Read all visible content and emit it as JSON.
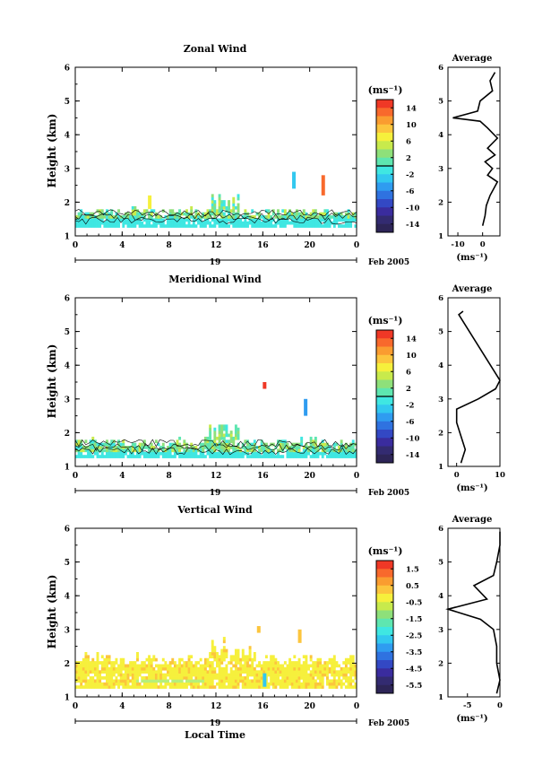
{
  "chart_data": [
    {
      "type": "heatmap",
      "title": "Zonal Wind",
      "ylabel": "Height (km)",
      "x_ticks": [
        "0",
        "4",
        "8",
        "12",
        "16",
        "20",
        "0"
      ],
      "day_label": "19",
      "month_label": "Feb 2005",
      "xlim": [
        0,
        24
      ],
      "ylim": [
        1,
        6
      ],
      "y_ticks": [
        1,
        2,
        3,
        4,
        5,
        6
      ],
      "colorbar": {
        "unit": "(ms⁻¹)",
        "ticks": [
          "14",
          "10",
          "6",
          "2",
          "-2",
          "-6",
          "-10",
          "-14"
        ],
        "range": [
          -16,
          16
        ]
      },
      "profile": {
        "title": "Average",
        "xlabel": "(ms⁻¹)",
        "x_ticks": [
          -10,
          0
        ],
        "xlim": [
          -14,
          7
        ],
        "points": [
          [
            0,
            1.3
          ],
          [
            1,
            1.6
          ],
          [
            1.5,
            1.9
          ],
          [
            3,
            2.2
          ],
          [
            6,
            2.6
          ],
          [
            2,
            2.8
          ],
          [
            4,
            3.0
          ],
          [
            1,
            3.2
          ],
          [
            5,
            3.4
          ],
          [
            2,
            3.6
          ],
          [
            6,
            3.9
          ],
          [
            2,
            4.2
          ],
          [
            -1,
            4.4
          ],
          [
            -12,
            4.5
          ],
          [
            -2,
            4.7
          ],
          [
            -1,
            5.0
          ],
          [
            4,
            5.3
          ],
          [
            3,
            5.6
          ],
          [
            5,
            5.85
          ]
        ]
      }
    },
    {
      "type": "heatmap",
      "title": "Meridional Wind",
      "ylabel": "Height (km)",
      "x_ticks": [
        "0",
        "4",
        "8",
        "12",
        "16",
        "20",
        "0"
      ],
      "day_label": "19",
      "month_label": "Feb 2005",
      "xlim": [
        0,
        24
      ],
      "ylim": [
        1,
        6
      ],
      "y_ticks": [
        1,
        2,
        3,
        4,
        5,
        6
      ],
      "colorbar": {
        "unit": "(ms⁻¹)",
        "ticks": [
          "14",
          "10",
          "6",
          "2",
          "-2",
          "-6",
          "-10",
          "-14"
        ],
        "range": [
          -16,
          16
        ]
      },
      "profile": {
        "title": "Average",
        "xlabel": "(ms⁻¹)",
        "x_ticks": [
          0,
          10
        ],
        "xlim": [
          -2,
          10
        ],
        "points": [
          [
            1,
            1.1
          ],
          [
            2,
            1.5
          ],
          [
            1,
            1.9
          ],
          [
            0,
            2.3
          ],
          [
            0,
            2.7
          ],
          [
            5,
            3.0
          ],
          [
            9,
            3.3
          ],
          [
            10,
            3.55
          ],
          [
            0.5,
            5.5
          ],
          [
            1.5,
            5.6
          ]
        ]
      }
    },
    {
      "type": "heatmap",
      "title": "Vertical Wind",
      "ylabel": "Height (km)",
      "xlabel": "Local Time",
      "x_ticks": [
        "0",
        "4",
        "8",
        "12",
        "16",
        "20",
        "0"
      ],
      "day_label": "19",
      "month_label": "Feb 2005",
      "xlim": [
        0,
        24
      ],
      "ylim": [
        1,
        6
      ],
      "y_ticks": [
        1,
        2,
        3,
        4,
        5,
        6
      ],
      "colorbar": {
        "unit": "(ms⁻¹)",
        "ticks": [
          "1.5",
          "0.5",
          "-0.5",
          "-1.5",
          "-2.5",
          "-3.5",
          "-4.5",
          "-5.5"
        ],
        "range": [
          -6,
          2
        ]
      },
      "profile": {
        "title": "Average",
        "xlabel": "(ms⁻¹)",
        "x_ticks": [
          -5,
          0
        ],
        "xlim": [
          -8,
          0
        ],
        "points": [
          [
            -0.5,
            1.1
          ],
          [
            0,
            1.5
          ],
          [
            -0.5,
            2.0
          ],
          [
            -0.5,
            2.5
          ],
          [
            -1,
            3.0
          ],
          [
            -3,
            3.3
          ],
          [
            -8,
            3.6
          ],
          [
            -2,
            3.9
          ],
          [
            -4,
            4.3
          ],
          [
            -1,
            4.6
          ],
          [
            -0.5,
            5.0
          ],
          [
            0,
            5.5
          ],
          [
            0,
            5.9
          ]
        ]
      }
    }
  ]
}
